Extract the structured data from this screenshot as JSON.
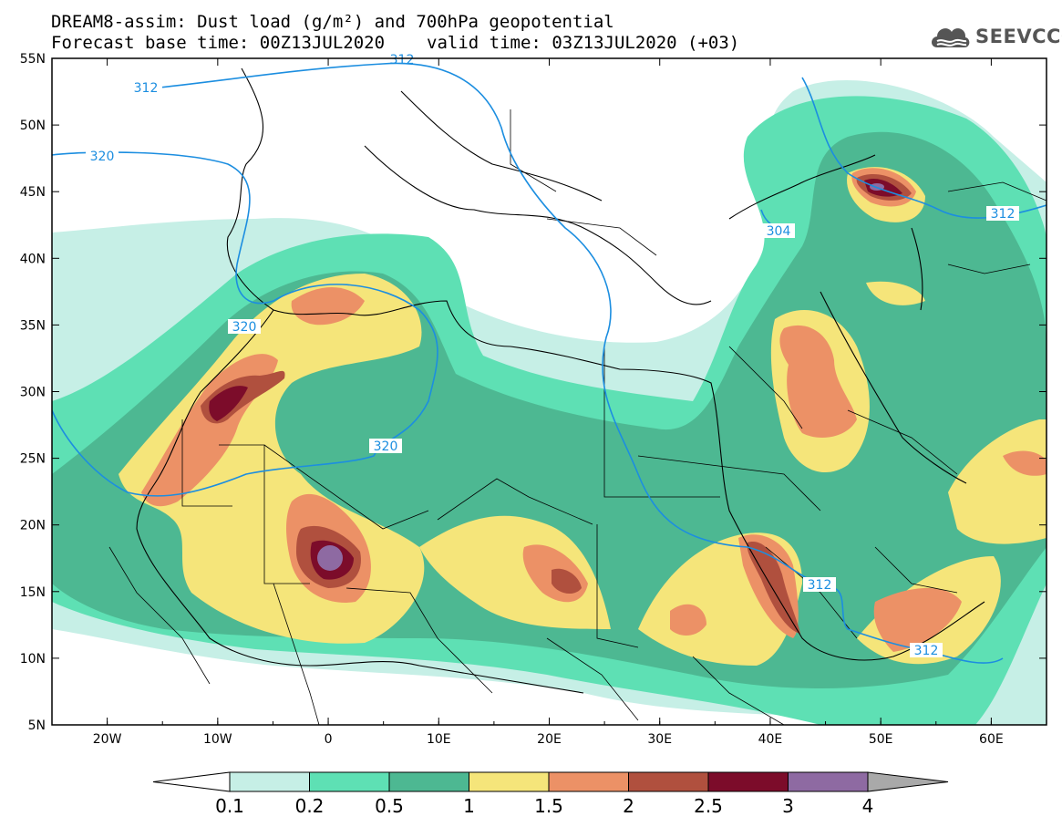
{
  "header": {
    "line1": "DREAM8-assim: Dust load (g/m²) and 700hPa geopotential",
    "base_label": "Forecast base time: 00Z13JUL2020",
    "valid_label": "valid time: 03Z13JUL2020 (+03)"
  },
  "logo": {
    "text": "SEEVCCC",
    "icon": "cloud-icon"
  },
  "map": {
    "lon_labels": [
      "20W",
      "10W",
      "0",
      "10E",
      "20E",
      "30E",
      "40E",
      "50E",
      "60E"
    ],
    "lat_labels": [
      "55N",
      "50N",
      "45N",
      "40N",
      "35N",
      "30N",
      "25N",
      "20N",
      "15N",
      "10N",
      "5N"
    ],
    "contour_labels": [
      "312",
      "320",
      "320",
      "320",
      "304",
      "312",
      "312",
      "312",
      "312"
    ]
  },
  "colorbar": {
    "labels": [
      "0.1",
      "0.2",
      "0.5",
      "1",
      "1.5",
      "2",
      "2.5",
      "3",
      "4"
    ],
    "colors": [
      "#ffffff",
      "#c6efe6",
      "#5ee0b4",
      "#4db892",
      "#f5e57a",
      "#ec9166",
      "#b0503e",
      "#7c0c2a",
      "#8e6aa2",
      "#a9a9a9"
    ]
  }
}
